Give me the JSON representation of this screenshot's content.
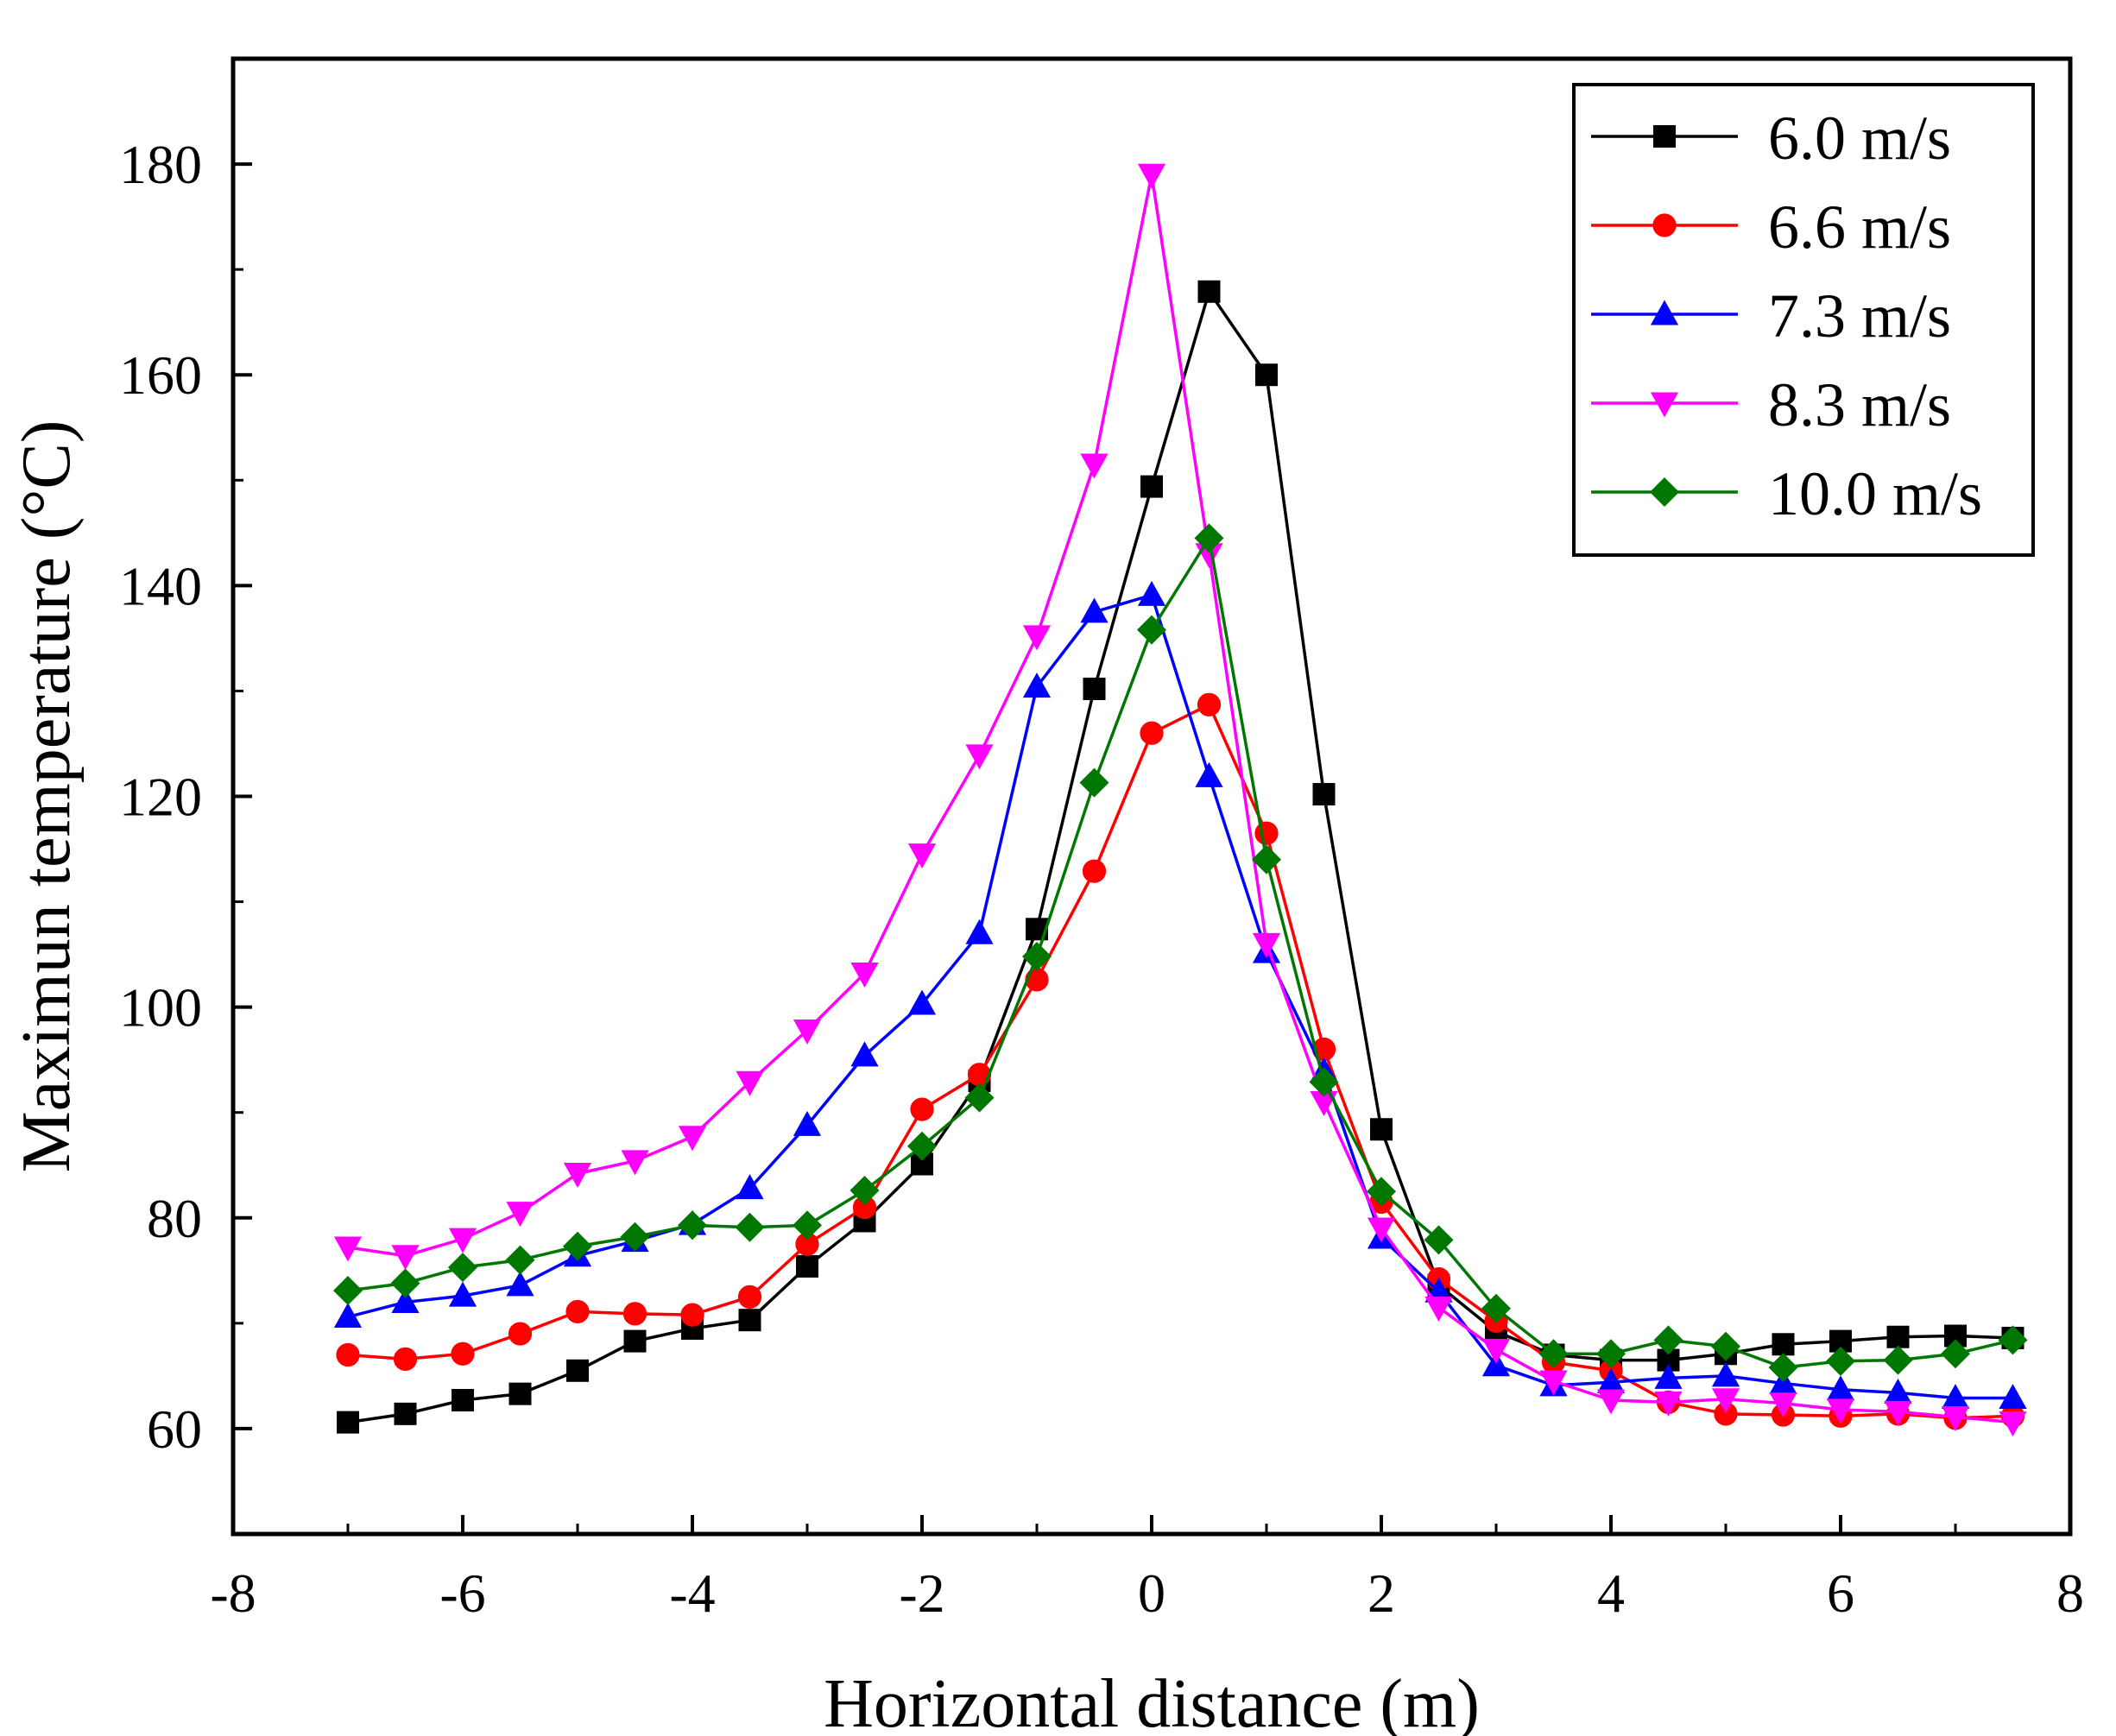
{
  "chart_data": {
    "type": "line",
    "title": "",
    "xlabel": "Horizontal distance (m)",
    "ylabel": "Maximun temperature (°C)",
    "xlim": [
      -8,
      8
    ],
    "ylim": [
      50,
      190
    ],
    "xticks": [
      -8,
      -6,
      -4,
      -2,
      0,
      2,
      4,
      6,
      8
    ],
    "yticks": [
      60,
      80,
      100,
      120,
      140,
      160,
      180
    ],
    "xtick_labels": [
      "-8",
      "-6",
      "-4",
      "-2",
      "0",
      "2",
      "4",
      "6",
      "8"
    ],
    "ytick_labels": [
      "60",
      "80",
      "100",
      "120",
      "140",
      "160",
      "180"
    ],
    "grid": false,
    "legend_position": "top-right",
    "x": [
      -7,
      -6.5,
      -6,
      -5.5,
      -5,
      -4.5,
      -4,
      -3.5,
      -3,
      -2.5,
      -2,
      -1.5,
      -1,
      -0.5,
      0,
      0.5,
      1,
      1.5,
      2,
      2.5,
      3,
      3.5,
      4,
      4.5,
      5,
      5.5,
      6,
      6.5,
      7,
      7.5
    ],
    "series": [
      {
        "name": "6.0 m/s",
        "color": "#000000",
        "marker": "square",
        "values": [
          60.6,
          61.4,
          62.7,
          63.3,
          65.5,
          68.3,
          69.5,
          70.3,
          75.4,
          79.7,
          85.1,
          93.0,
          107.4,
          130.2,
          149.4,
          167.9,
          160.0,
          120.2,
          88.4,
          73.6,
          69.2,
          67.0,
          66.5,
          66.5,
          67.1,
          68.0,
          68.3,
          68.7,
          68.8,
          68.6
        ]
      },
      {
        "name": "6.6 m/s",
        "color": "#ff0000",
        "marker": "circle",
        "values": [
          67.0,
          66.6,
          67.1,
          69.0,
          71.1,
          70.9,
          70.8,
          72.5,
          77.5,
          81.0,
          90.3,
          93.6,
          102.6,
          112.9,
          126.0,
          128.7,
          116.5,
          96.0,
          81.5,
          74.2,
          70.2,
          66.3,
          65.5,
          62.5,
          61.4,
          61.3,
          61.2,
          61.4,
          61.0,
          61.2
        ]
      },
      {
        "name": "7.3 m/s",
        "color": "#0000ff",
        "marker": "triangle-up",
        "values": [
          70.6,
          72.0,
          72.6,
          73.6,
          76.4,
          77.8,
          79.4,
          82.8,
          88.8,
          95.4,
          100.3,
          107.0,
          130.4,
          137.5,
          139.1,
          121.9,
          105.2,
          93.9,
          78.1,
          73.0,
          66.0,
          64.1,
          64.4,
          64.8,
          65.0,
          64.3,
          63.7,
          63.4,
          62.9,
          62.9
        ]
      },
      {
        "name": "8.3 m/s",
        "color": "#ff00ff",
        "marker": "triangle-down",
        "values": [
          77.2,
          76.4,
          78.0,
          80.5,
          84.2,
          85.4,
          87.7,
          92.9,
          97.8,
          103.2,
          114.5,
          123.9,
          135.2,
          151.5,
          179.0,
          143.0,
          106.0,
          91.0,
          79.0,
          71.5,
          67.5,
          64.5,
          62.7,
          62.5,
          62.8,
          62.4,
          61.8,
          61.6,
          61.1,
          60.6
        ]
      },
      {
        "name": "10.0 m/s",
        "color": "#007700",
        "marker": "diamond",
        "values": [
          73.1,
          73.8,
          75.3,
          76.0,
          77.3,
          78.2,
          79.3,
          79.1,
          79.3,
          82.6,
          86.8,
          91.4,
          104.8,
          121.3,
          135.8,
          144.5,
          114.0,
          92.9,
          82.5,
          77.9,
          71.4,
          67.1,
          67.1,
          68.4,
          67.8,
          65.8,
          66.4,
          66.5,
          67.1,
          68.4
        ]
      }
    ]
  }
}
